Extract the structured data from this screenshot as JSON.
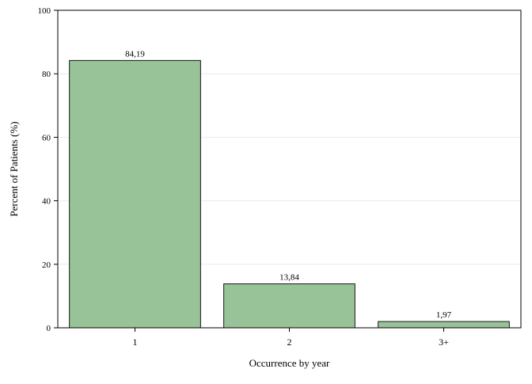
{
  "chart_data": {
    "type": "bar",
    "title": "",
    "xlabel": "Occurrence by year",
    "ylabel": "Percent of Patients (%)",
    "categories": [
      "1",
      "2",
      "3+"
    ],
    "values": [
      84.19,
      13.84,
      1.97
    ],
    "value_labels": [
      "84,19",
      "13,84",
      "1,97"
    ],
    "ylim": [
      0,
      100
    ],
    "yticks": [
      0,
      20,
      40,
      60,
      80,
      100
    ],
    "ytick_labels": [
      "0",
      "20",
      "40",
      "60",
      "80",
      "100"
    ],
    "grid": true,
    "legend": "none",
    "colors": {
      "bar_fill": "#98c297",
      "bar_stroke": "#1a1a1a",
      "grid": "#ebebeb",
      "axis": "#000000"
    }
  }
}
